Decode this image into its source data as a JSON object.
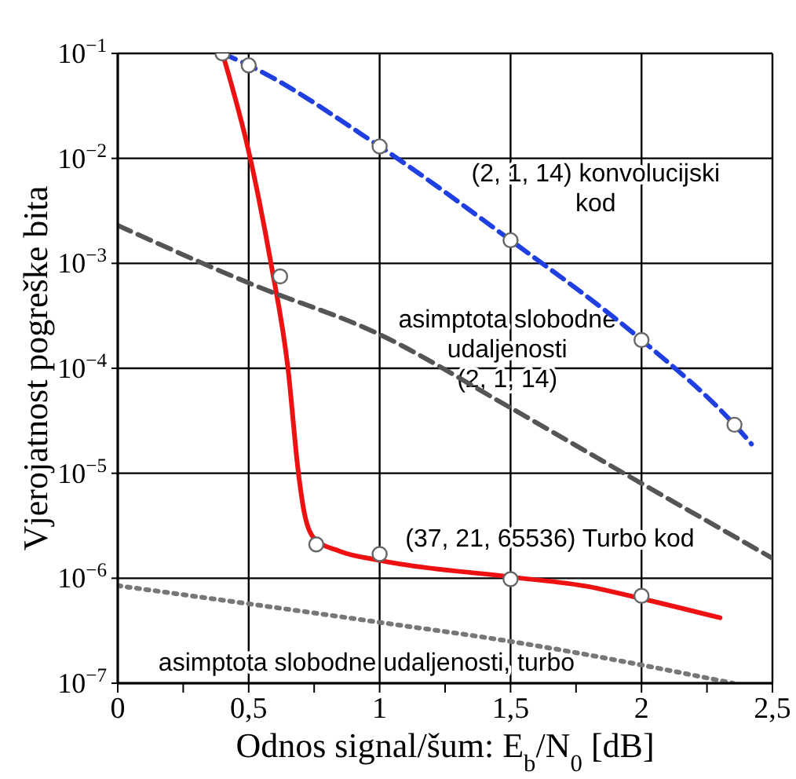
{
  "chart_data": {
    "type": "line",
    "xlabel": "Odnos signal/šum:  E$_{b}$/N$_{0}$ [dB]",
    "ylabel": "Vjerojatnost pogreške bita",
    "xlim": [
      0,
      2.5
    ],
    "ylim": [
      1e-07,
      0.1
    ],
    "log": "y",
    "grid": true,
    "xticks": [
      0,
      {
        "value": 0.25,
        "label": null
      },
      {
        "value": 0.5,
        "label": "0,5"
      },
      {
        "value": 0.75,
        "label": null
      },
      1,
      {
        "value": 1.25,
        "label": null
      },
      {
        "value": 1.5,
        "label": "1,5"
      },
      {
        "value": 1.75,
        "label": null
      },
      2,
      {
        "value": 2.25,
        "label": null
      },
      {
        "value": 2.5,
        "label": "2,5"
      }
    ],
    "yticks": [
      {
        "value": 1e-07,
        "label": "10$^{−7}$"
      },
      {
        "value": 1e-06,
        "label": "10$^{−6}$"
      },
      {
        "value": 1e-05,
        "label": "10$^{−5}$"
      },
      {
        "value": 0.0001,
        "label": "10$^{−4}$"
      },
      {
        "value": 0.001,
        "label": "10$^{−3}$"
      },
      {
        "value": 0.01,
        "label": "10$^{−2}$"
      },
      {
        "value": 0.1,
        "label": "10$^{−1}$"
      }
    ],
    "series": [
      {
        "color": "#1f3fe0",
        "line_style": "dashed",
        "marker": "none",
        "x": [
          0.4,
          0.5,
          1,
          1.5,
          2,
          2.355,
          2.42
        ],
        "values": [
          0.1,
          0.077,
          0.013,
          0.00166,
          0.000186,
          2.9e-05,
          1.9e-05
        ]
      },
      {
        "color": "#ee1111",
        "line_style": "solid",
        "marker": "none",
        "x": [
          0.4,
          0.506,
          0.585,
          0.65,
          0.69,
          0.71,
          0.75,
          0.85,
          1,
          1.5,
          1.8,
          2,
          2.3
        ],
        "values": [
          0.1,
          0.01,
          0.001,
          0.0001,
          1e-05,
          4.5e-06,
          2.4e-06,
          1.8e-06,
          1.48e-06,
          1.03e-06,
          8.3e-07,
          6.4e-07,
          4.2e-07
        ]
      },
      {
        "color": "#555555",
        "line_style": "dashed",
        "marker": "none",
        "x": [
          0,
          0.5,
          1,
          1.5,
          2,
          2.5
        ],
        "values": [
          0.0023,
          0.00065,
          0.00021,
          4.2e-05,
          8e-06,
          1.55e-06
        ]
      },
      {
        "color": "#777777",
        "line_style": "dotted",
        "marker": "none",
        "x": [
          0,
          1,
          1.5,
          2.35
        ],
        "values": [
          8.5e-07,
          3.8e-07,
          2.5e-07,
          1e-07
        ]
      },
      {
        "type": "scatter",
        "color": "#666666",
        "marker": "circle",
        "x": [
          0.4,
          0.5,
          1,
          1.5,
          2,
          2.355,
          0.62,
          0.758,
          1,
          1.5,
          2
        ],
        "values": [
          0.1,
          0.077,
          0.013,
          0.00166,
          0.000186,
          2.9e-05,
          0.00075,
          2.1e-06,
          1.7e-06,
          9.8e-07,
          6.8e-07
        ]
      }
    ],
    "annotations": [
      "(2, 1, 14) konvolucijski\nkod",
      "asimptota slobodne\nudaljenosti\n(2, 1, 14)",
      "(37, 21, 65536) Turbo kod",
      "asimptota slobodne udaljenosti, turbo"
    ]
  }
}
